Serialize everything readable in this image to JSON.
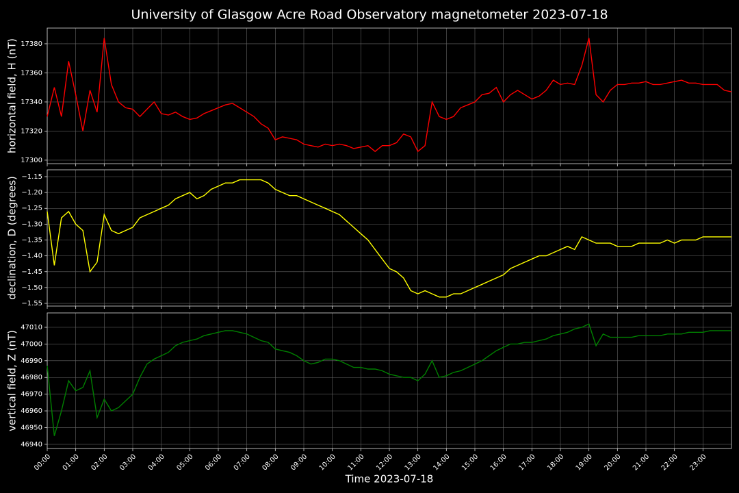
{
  "chart_data": {
    "type": "line",
    "title": "University of Glasgow Acre Road Observatory magnetometer 2023-07-18",
    "xlabel": "Time 2023-07-18",
    "xlim": [
      0,
      24
    ],
    "xticks": [
      {
        "value": 0,
        "label": "00:00"
      },
      {
        "value": 1,
        "label": "01:00"
      },
      {
        "value": 2,
        "label": "02:00"
      },
      {
        "value": 3,
        "label": "03:00"
      },
      {
        "value": 4,
        "label": "04:00"
      },
      {
        "value": 5,
        "label": "05:00"
      },
      {
        "value": 6,
        "label": "06:00"
      },
      {
        "value": 7,
        "label": "07:00"
      },
      {
        "value": 8,
        "label": "08:00"
      },
      {
        "value": 9,
        "label": "09:00"
      },
      {
        "value": 10,
        "label": "10:00"
      },
      {
        "value": 11,
        "label": "11:00"
      },
      {
        "value": 12,
        "label": "12:00"
      },
      {
        "value": 13,
        "label": "13:00"
      },
      {
        "value": 14,
        "label": "14:00"
      },
      {
        "value": 15,
        "label": "15:00"
      },
      {
        "value": 16,
        "label": "16:00"
      },
      {
        "value": 17,
        "label": "17:00"
      },
      {
        "value": 18,
        "label": "18:00"
      },
      {
        "value": 19,
        "label": "19:00"
      },
      {
        "value": 20,
        "label": "20:00"
      },
      {
        "value": 21,
        "label": "21:00"
      },
      {
        "value": 22,
        "label": "22:00"
      },
      {
        "value": 23,
        "label": "23:00"
      }
    ],
    "grid": true,
    "x": [
      0,
      0.25,
      0.5,
      0.75,
      1,
      1.25,
      1.5,
      1.75,
      2,
      2.25,
      2.5,
      2.75,
      3,
      3.25,
      3.5,
      3.75,
      4,
      4.25,
      4.5,
      4.75,
      5,
      5.25,
      5.5,
      5.75,
      6,
      6.25,
      6.5,
      6.75,
      7,
      7.25,
      7.5,
      7.75,
      8,
      8.25,
      8.5,
      8.75,
      9,
      9.25,
      9.5,
      9.75,
      10,
      10.25,
      10.5,
      10.75,
      11,
      11.25,
      11.5,
      11.75,
      12,
      12.25,
      12.5,
      12.75,
      13,
      13.25,
      13.5,
      13.75,
      14,
      14.25,
      14.5,
      14.75,
      15,
      15.25,
      15.5,
      15.75,
      16,
      16.25,
      16.5,
      16.75,
      17,
      17.25,
      17.5,
      17.75,
      18,
      18.25,
      18.5,
      18.75,
      19,
      19.25,
      19.5,
      19.75,
      20,
      20.25,
      20.5,
      20.75,
      21,
      21.25,
      21.5,
      21.75,
      22,
      22.25,
      22.5,
      22.75,
      23,
      23.25,
      23.5,
      23.75,
      24
    ],
    "panels": [
      {
        "ylabel": "horizontal field, H (nT)",
        "color": "#ff0000",
        "ylim": [
          17297.6,
          17390.8
        ],
        "yticks": [
          17300,
          17320,
          17340,
          17360,
          17380
        ],
        "values": [
          17330,
          17350,
          17330,
          17368,
          17345,
          17320,
          17348,
          17333,
          17384,
          17352,
          17340,
          17336,
          17335,
          17330,
          17335,
          17340,
          17332,
          17331,
          17333,
          17330,
          17328,
          17329,
          17332,
          17334,
          17336,
          17338,
          17339,
          17336,
          17333,
          17330,
          17325,
          17322,
          17314,
          17316,
          17315,
          17314,
          17311,
          17310,
          17309,
          17311,
          17310,
          17311,
          17310,
          17308,
          17309,
          17310,
          17306,
          17310,
          17310,
          17312,
          17318,
          17316,
          17306,
          17310,
          17340,
          17330,
          17328,
          17330,
          17336,
          17338,
          17340,
          17345,
          17346,
          17350,
          17340,
          17345,
          17348,
          17345,
          17342,
          17344,
          17348,
          17355,
          17352,
          17353,
          17352,
          17365,
          17384,
          17345,
          17340,
          17348,
          17352,
          17352,
          17353,
          17353,
          17354,
          17352,
          17352,
          17353,
          17354,
          17355,
          17353,
          17353,
          17352,
          17352,
          17352,
          17348,
          17347
        ]
      },
      {
        "ylabel": "declination, D (degrees)",
        "color": "#ffff00",
        "ylim": [
          -1.5586,
          -1.1284
        ],
        "yticks": [
          {
            "value": -1.55,
            "label": "−1.55"
          },
          {
            "value": -1.5,
            "label": "−1.50"
          },
          {
            "value": -1.45,
            "label": "−1.45"
          },
          {
            "value": -1.4,
            "label": "−1.40"
          },
          {
            "value": -1.35,
            "label": "−1.35"
          },
          {
            "value": -1.3,
            "label": "−1.30"
          },
          {
            "value": -1.25,
            "label": "−1.25"
          },
          {
            "value": -1.2,
            "label": "−1.20"
          },
          {
            "value": -1.15,
            "label": "−1.15"
          }
        ],
        "values": [
          -1.26,
          -1.43,
          -1.28,
          -1.26,
          -1.3,
          -1.32,
          -1.45,
          -1.42,
          -1.27,
          -1.32,
          -1.33,
          -1.32,
          -1.31,
          -1.28,
          -1.27,
          -1.26,
          -1.25,
          -1.24,
          -1.22,
          -1.21,
          -1.2,
          -1.22,
          -1.21,
          -1.19,
          -1.18,
          -1.17,
          -1.17,
          -1.16,
          -1.16,
          -1.16,
          -1.16,
          -1.17,
          -1.19,
          -1.2,
          -1.21,
          -1.21,
          -1.22,
          -1.23,
          -1.24,
          -1.25,
          -1.26,
          -1.27,
          -1.29,
          -1.31,
          -1.33,
          -1.35,
          -1.38,
          -1.41,
          -1.44,
          -1.45,
          -1.47,
          -1.51,
          -1.52,
          -1.51,
          -1.52,
          -1.53,
          -1.53,
          -1.52,
          -1.52,
          -1.51,
          -1.5,
          -1.49,
          -1.48,
          -1.47,
          -1.46,
          -1.44,
          -1.43,
          -1.42,
          -1.41,
          -1.4,
          -1.4,
          -1.39,
          -1.38,
          -1.37,
          -1.38,
          -1.34,
          -1.35,
          -1.36,
          -1.36,
          -1.36,
          -1.37,
          -1.37,
          -1.37,
          -1.36,
          -1.36,
          -1.36,
          -1.36,
          -1.35,
          -1.36,
          -1.35,
          -1.35,
          -1.35,
          -1.34,
          -1.34,
          -1.34,
          -1.34,
          -1.34
        ]
      },
      {
        "ylabel": "vertical field, Z (nT)",
        "color": "#008000",
        "ylim": [
          46937.5,
          47018.6
        ],
        "yticks": [
          46940,
          46950,
          46960,
          46970,
          46980,
          46990,
          47000,
          47010
        ],
        "values": [
          46987,
          46945,
          46960,
          46978,
          46972,
          46974,
          46984,
          46956,
          46967,
          46960,
          46962,
          46966,
          46970,
          46980,
          46988,
          46991,
          46993,
          46995,
          46999,
          47001,
          47002,
          47003,
          47005,
          47006,
          47007,
          47008,
          47008,
          47007,
          47006,
          47004,
          47002,
          47001,
          46997,
          46996,
          46995,
          46993,
          46990,
          46988,
          46989,
          46991,
          46991,
          46990,
          46988,
          46986,
          46986,
          46985,
          46985,
          46984,
          46982,
          46981,
          46980,
          46980,
          46978,
          46982,
          46990,
          46980,
          46981,
          46983,
          46984,
          46986,
          46988,
          46990,
          46993,
          46996,
          46998,
          47000,
          47000,
          47001,
          47001,
          47002,
          47003,
          47005,
          47006,
          47007,
          47009,
          47010,
          47012,
          46999,
          47006,
          47004,
          47004,
          47004,
          47004,
          47005,
          47005,
          47005,
          47005,
          47006,
          47006,
          47006,
          47007,
          47007,
          47007,
          47008,
          47008,
          47008,
          47008
        ]
      }
    ]
  }
}
